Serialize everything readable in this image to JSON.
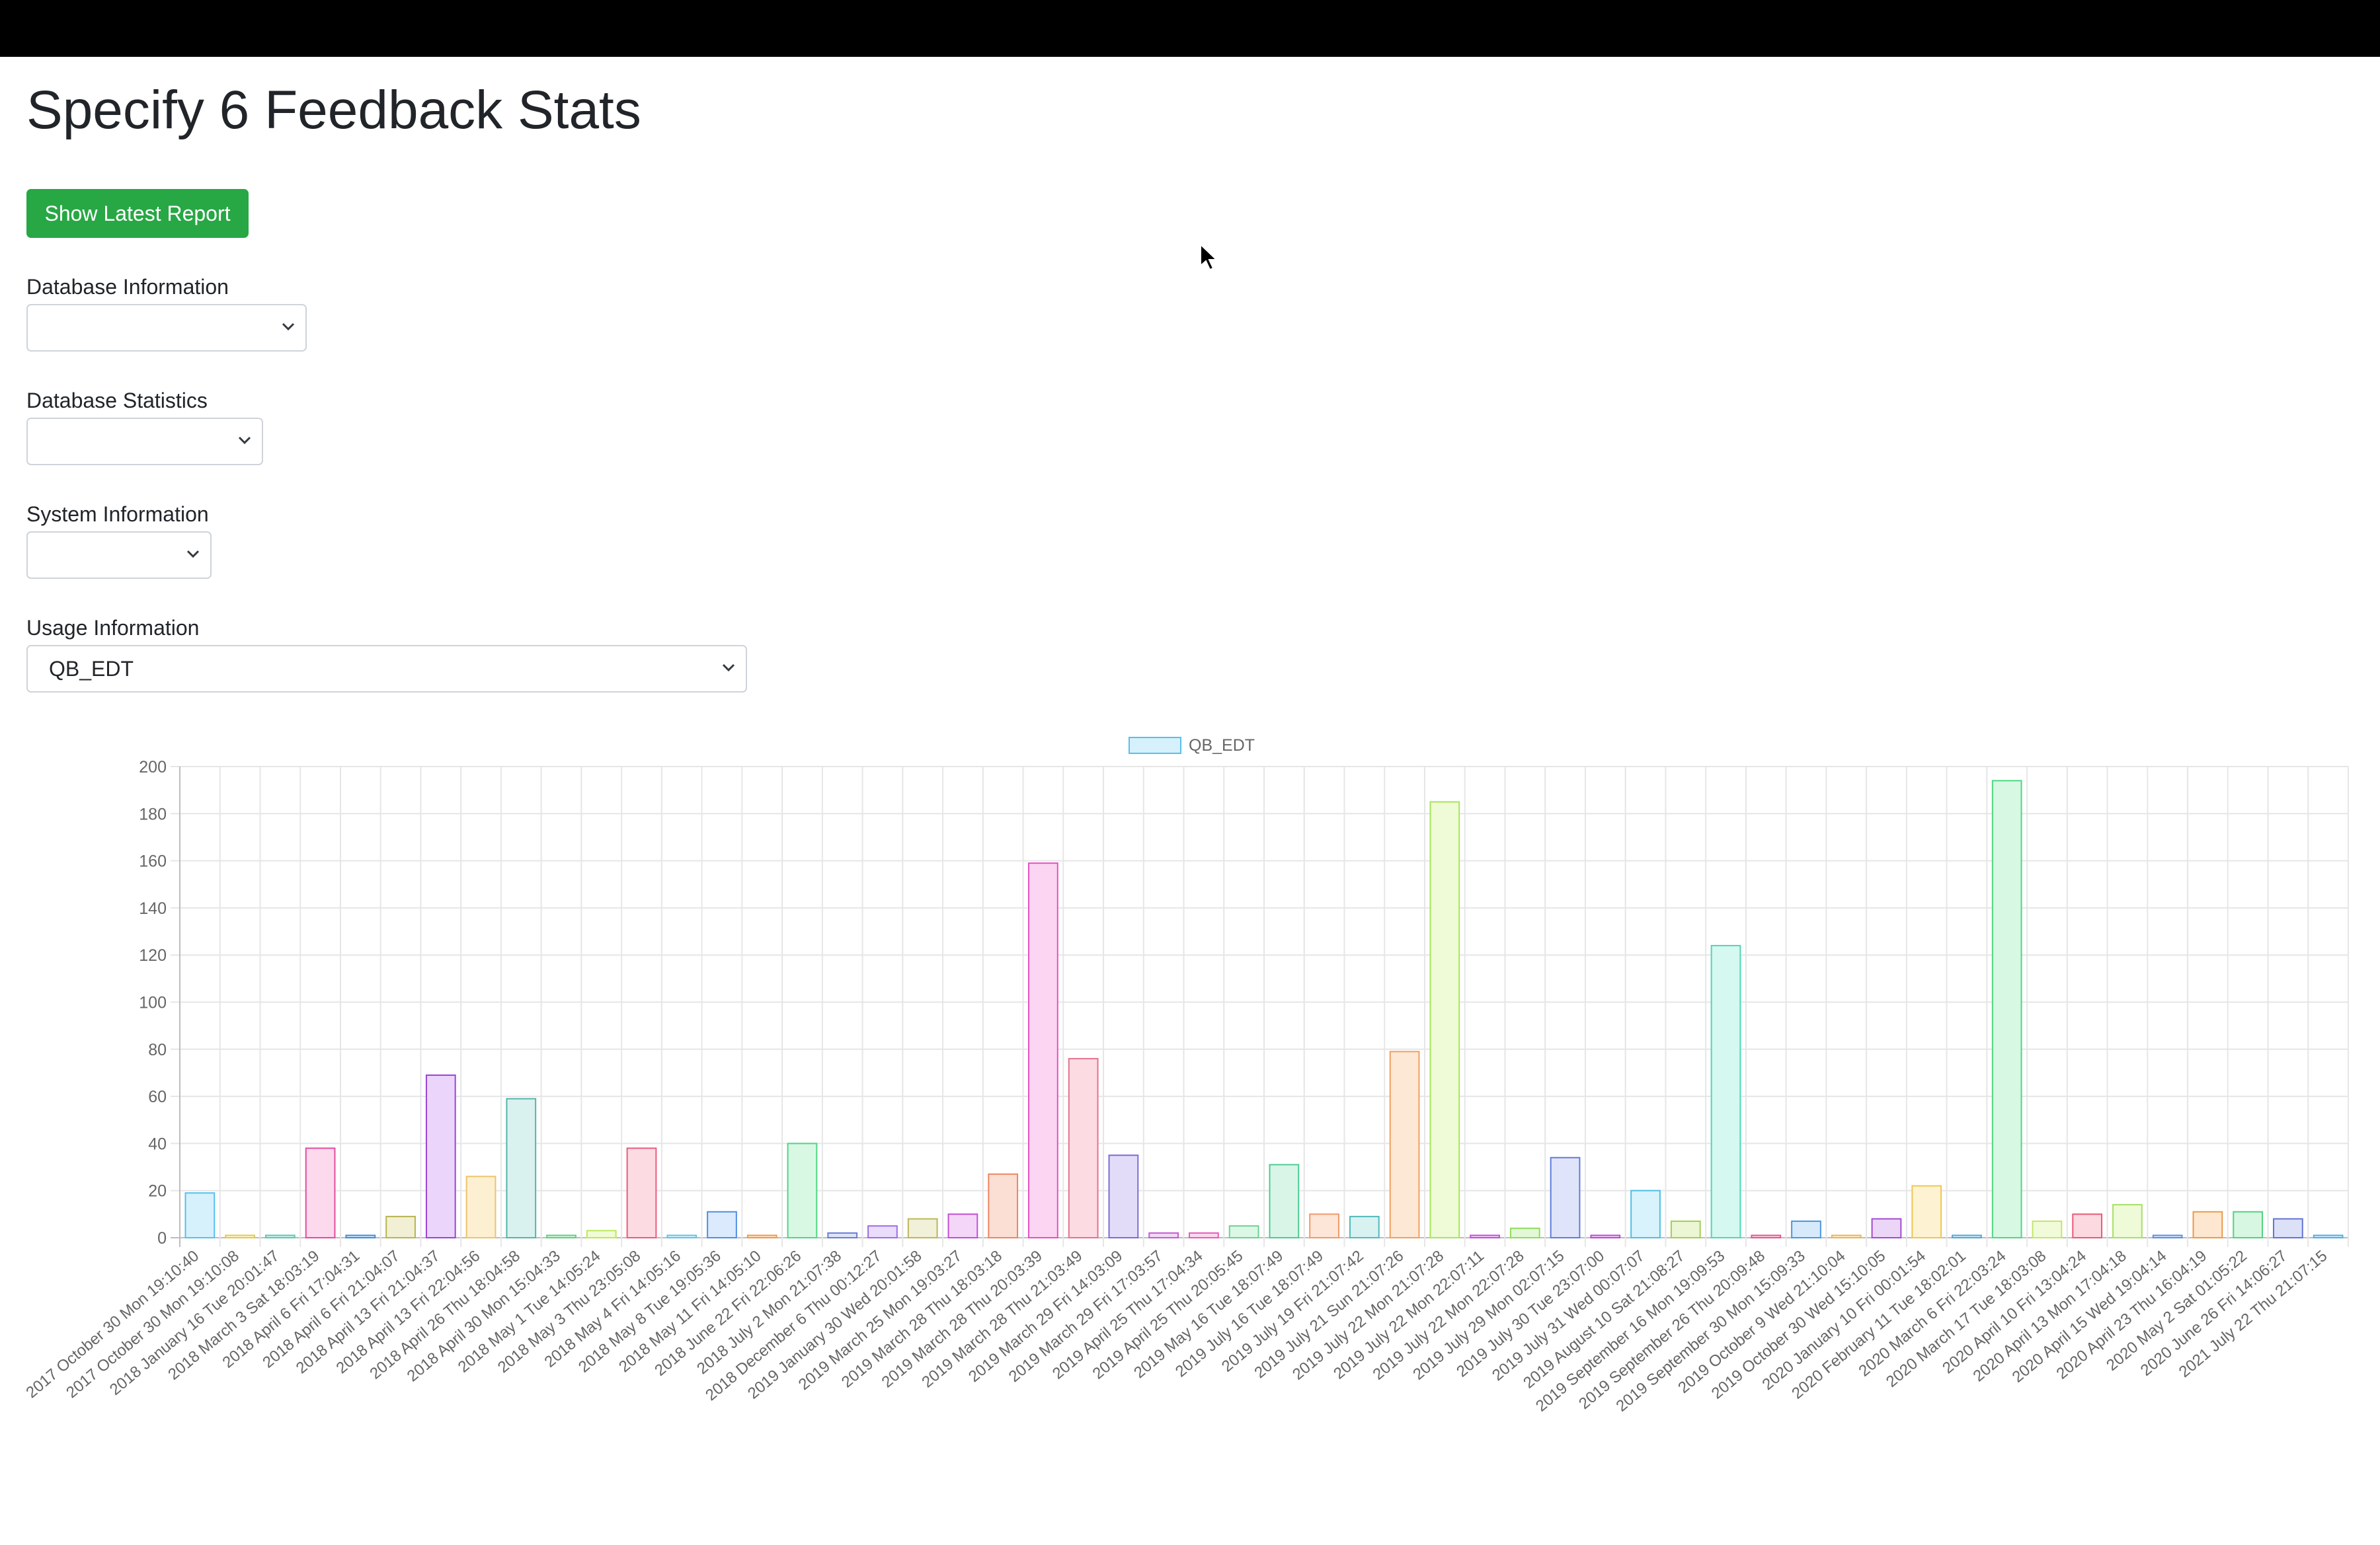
{
  "page": {
    "title": "Specify 6 Feedback Stats",
    "latest_button": "Show Latest Report"
  },
  "filters": [
    {
      "label": "Database Information",
      "value": ""
    },
    {
      "label": "Database Statistics",
      "value": ""
    },
    {
      "label": "System Information",
      "value": ""
    },
    {
      "label": "Usage Information",
      "value": "QB_EDT"
    }
  ],
  "icons": {
    "dropdown": "chevron-down-icon",
    "pointer": "mouse-cursor-icon"
  },
  "chart_data": {
    "type": "bar",
    "series": [
      {
        "name": "QB_EDT"
      }
    ],
    "ylim": [
      0,
      200
    ],
    "yticks": [
      0,
      20,
      40,
      60,
      80,
      100,
      120,
      140,
      160,
      180,
      200
    ],
    "grid": true,
    "legend": "top-center",
    "categories": [
      "2017 October 30 Mon 19:10:40",
      "2017 October 30 Mon 19:10:08",
      "2018 January 16 Tue 20:01:47",
      "2018 March 3 Sat 18:03:19",
      "2018 April 6 Fri 17:04:31",
      "2018 April 6 Fri 21:04:07",
      "2018 April 13 Fri 21:04:37",
      "2018 April 13 Fri 22:04:56",
      "2018 April 26 Thu 18:04:58",
      "2018 April 30 Mon 15:04:33",
      "2018 May 1 Tue 14:05:24",
      "2018 May 3 Thu 23:05:08",
      "2018 May 4 Fri 14:05:16",
      "2018 May 8 Tue 19:05:36",
      "2018 May 11 Fri 14:05:10",
      "2018 June 22 Fri 22:06:26",
      "2018 July 2 Mon 21:07:38",
      "2018 December 6 Thu 00:12:27",
      "2019 January 30 Wed 20:01:58",
      "2019 March 25 Mon 19:03:27",
      "2019 March 28 Thu 18:03:18",
      "2019 March 28 Thu 20:03:39",
      "2019 March 28 Thu 21:03:49",
      "2019 March 29 Fri 14:03:09",
      "2019 March 29 Fri 17:03:57",
      "2019 April 25 Thu 17:04:34",
      "2019 April 25 Thu 20:05:45",
      "2019 May 16 Tue 18:07:49",
      "2019 July 16 Tue 18:07:49",
      "2019 July 19 Fri 21:07:42",
      "2019 July 21 Sun 21:07:26",
      "2019 July 22 Mon 21:07:28",
      "2019 July 22 Mon 22:07:11",
      "2019 July 22 Mon 22:07:28",
      "2019 July 29 Mon 02:07:15",
      "2019 July 30 Tue 23:07:00",
      "2019 July 31 Wed 00:07:07",
      "2019 August 10 Sat 21:08:27",
      "2019 September 16 Mon 19:09:53",
      "2019 September 26 Thu 20:09:48",
      "2019 September 30 Mon 15:09:33",
      "2019 October 9 Wed 21:10:04",
      "2019 October 30 Wed 15:10:05",
      "2020 January 10 Fri 00:01:54",
      "2020 February 11 Tue 18:02:01",
      "2020 March 6 Fri 22:03:24",
      "2020 March 17 Tue 18:03:08",
      "2020 April 10 Fri 13:04:24",
      "2020 April 13 Mon 17:04:18",
      "2020 April 15 Wed 19:04:14",
      "2020 April 23 Thu 16:04:19",
      "2020 May 2 Sat 01:05:22",
      "2020 June 26 Fri 14:06:27",
      "2021 July 22 Thu 21:07:15"
    ],
    "values": [
      19,
      1,
      1,
      38,
      1,
      9,
      69,
      26,
      59,
      1,
      3,
      38,
      1,
      11,
      1,
      40,
      2,
      5,
      8,
      10,
      27,
      159,
      76,
      35,
      2,
      2,
      5,
      31,
      10,
      9,
      79,
      185,
      1,
      4,
      34,
      1,
      20,
      7,
      124,
      1,
      7,
      1,
      8,
      22,
      1,
      194,
      7,
      10,
      14,
      1,
      11,
      11,
      8,
      1
    ],
    "colors": [
      {
        "fill": "#d6f1fb",
        "stroke": "#56c1ea"
      },
      {
        "fill": "#fdf7d8",
        "stroke": "#e6c84a"
      },
      {
        "fill": "#d9f4ef",
        "stroke": "#5cc7b2"
      },
      {
        "fill": "#fcd9ec",
        "stroke": "#e24c9e"
      },
      {
        "fill": "#d6e9fb",
        "stroke": "#3f8ed8"
      },
      {
        "fill": "#f1f0d4",
        "stroke": "#b8b451"
      },
      {
        "fill": "#ebd5fb",
        "stroke": "#9b43d8"
      },
      {
        "fill": "#fdf0d2",
        "stroke": "#ecc46a"
      },
      {
        "fill": "#d9f1ef",
        "stroke": "#56b4a8"
      },
      {
        "fill": "#dcf7e3",
        "stroke": "#5fcf82"
      },
      {
        "fill": "#f1fbd4",
        "stroke": "#bde85c"
      },
      {
        "fill": "#fcdbe2",
        "stroke": "#e85d7d"
      },
      {
        "fill": "#ddf3fb",
        "stroke": "#63c4e6"
      },
      {
        "fill": "#dbeafc",
        "stroke": "#4f8fe3"
      },
      {
        "fill": "#fde7d3",
        "stroke": "#ef9a4c"
      },
      {
        "fill": "#d9f8e4",
        "stroke": "#4fd685"
      },
      {
        "fill": "#dee3f8",
        "stroke": "#6a7fd3"
      },
      {
        "fill": "#eadcfb",
        "stroke": "#9d6ee6"
      },
      {
        "fill": "#f1f0d8",
        "stroke": "#bdb65a"
      },
      {
        "fill": "#f4d6f8",
        "stroke": "#c24ed6"
      },
      {
        "fill": "#fbdfd5",
        "stroke": "#ee8560"
      },
      {
        "fill": "#fbd5f1",
        "stroke": "#e44fc3"
      },
      {
        "fill": "#fcdbe3",
        "stroke": "#e5728e"
      },
      {
        "fill": "#e3dcf8",
        "stroke": "#7d6ad7"
      },
      {
        "fill": "#f3d8f6",
        "stroke": "#c45bd0"
      },
      {
        "fill": "#fbd8ee",
        "stroke": "#e060b7"
      },
      {
        "fill": "#dcf7e6",
        "stroke": "#69d490"
      },
      {
        "fill": "#d8f5e8",
        "stroke": "#4ecb93"
      },
      {
        "fill": "#fde6d8",
        "stroke": "#ee9a6a"
      },
      {
        "fill": "#d8f1f1",
        "stroke": "#55b9b9"
      },
      {
        "fill": "#fde8d6",
        "stroke": "#f0a060"
      },
      {
        "fill": "#eefbd6",
        "stroke": "#a8e55a"
      },
      {
        "fill": "#f3d6f8",
        "stroke": "#c04fd8"
      },
      {
        "fill": "#e2f8d6",
        "stroke": "#8fdc5d"
      },
      {
        "fill": "#dfe4fa",
        "stroke": "#5f7ddb"
      },
      {
        "fill": "#f2d6f7",
        "stroke": "#bd47d3"
      },
      {
        "fill": "#d8f3fb",
        "stroke": "#52bde6"
      },
      {
        "fill": "#ecf6d4",
        "stroke": "#a4cd54"
      },
      {
        "fill": "#d5f8f0",
        "stroke": "#4fd6b7"
      },
      {
        "fill": "#fbd8e6",
        "stroke": "#e2578e"
      },
      {
        "fill": "#d7eafb",
        "stroke": "#4b97df"
      },
      {
        "fill": "#fdf0d4",
        "stroke": "#e7b55a"
      },
      {
        "fill": "#ecd6f7",
        "stroke": "#a24bd2"
      },
      {
        "fill": "#fdf3d3",
        "stroke": "#efc552"
      },
      {
        "fill": "#d7eef8",
        "stroke": "#52a8d3"
      },
      {
        "fill": "#d7f8e3",
        "stroke": "#4fd680"
      },
      {
        "fill": "#f1fbd9",
        "stroke": "#c2e66b"
      },
      {
        "fill": "#fcd9e0",
        "stroke": "#e75a77"
      },
      {
        "fill": "#eefad8",
        "stroke": "#a7e065"
      },
      {
        "fill": "#dbe7fb",
        "stroke": "#5b8fe0"
      },
      {
        "fill": "#fde7d1",
        "stroke": "#eb9a45"
      },
      {
        "fill": "#d8f7e2",
        "stroke": "#52d280"
      },
      {
        "fill": "#dde1f8",
        "stroke": "#6274d4"
      },
      {
        "fill": "#d8eefb",
        "stroke": "#50aee6"
      }
    ]
  }
}
